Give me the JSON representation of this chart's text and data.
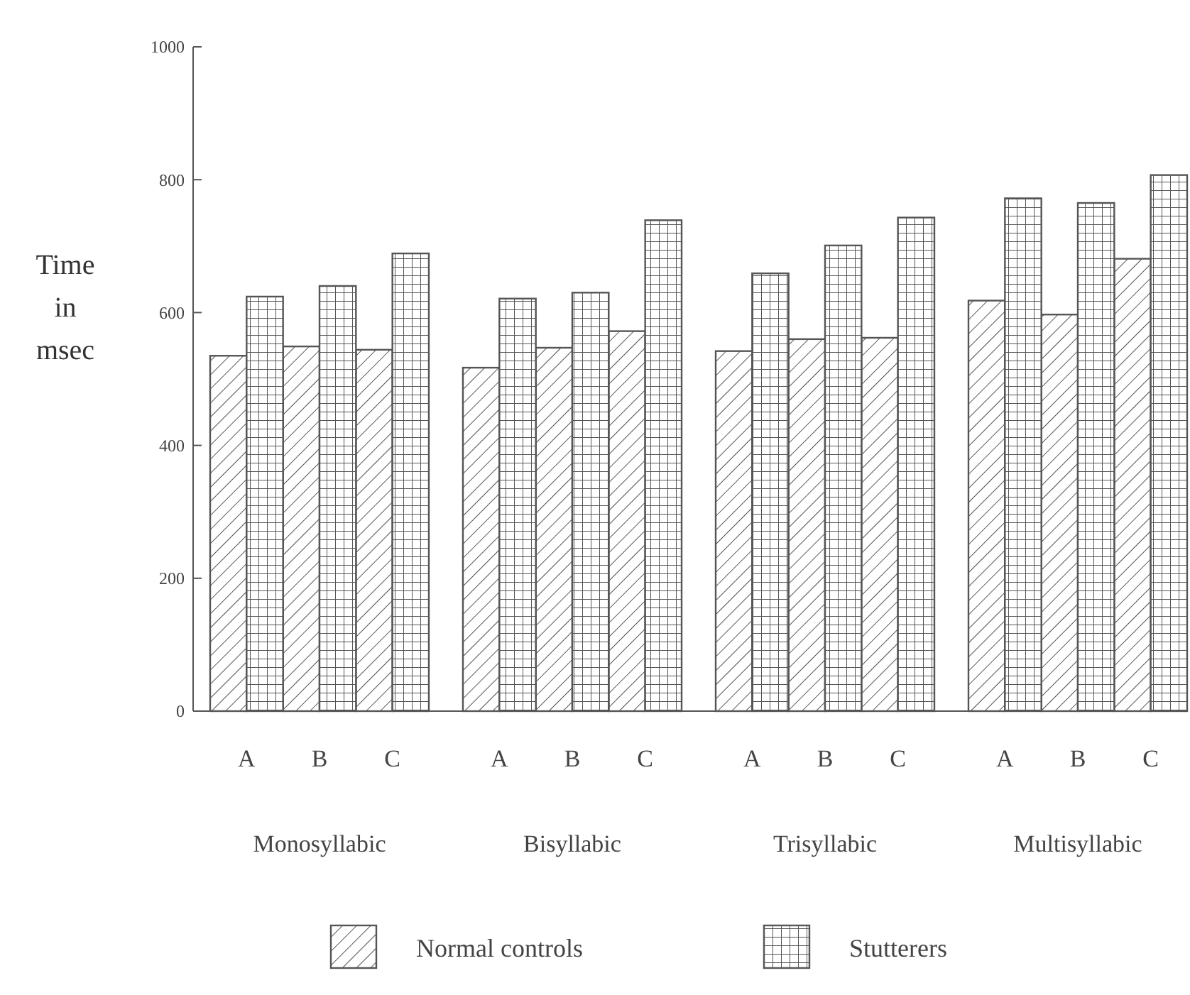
{
  "chart_data": {
    "type": "bar",
    "ylabel": "Time in msec",
    "categories": [
      "A",
      "B",
      "C",
      "A",
      "B",
      "C",
      "A",
      "B",
      "C",
      "A",
      "B",
      "C"
    ],
    "series": [
      {
        "name": "Normal controls",
        "color": "#555555",
        "values": [
          535,
          549,
          544,
          517,
          547,
          572,
          542,
          560,
          562,
          618,
          597,
          681
        ]
      },
      {
        "name": "Stutterers",
        "color": "#555555",
        "values": [
          624,
          640,
          689,
          621,
          630,
          739,
          659,
          701,
          743,
          772,
          765,
          807
        ]
      }
    ],
    "annotations": [
      "Monosyllabic",
      "Bisyllabic",
      "Trisyllabic",
      "Multisyllabic"
    ],
    "ylim": [
      0,
      1000
    ],
    "yticks": [
      0,
      200,
      400,
      600,
      800,
      1000
    ],
    "legend": "bottom"
  }
}
